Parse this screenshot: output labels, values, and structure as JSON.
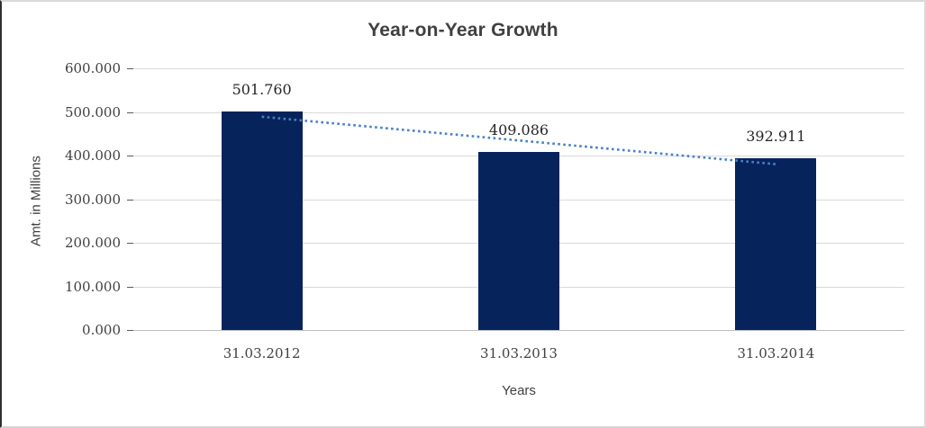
{
  "chart_data": {
    "type": "bar",
    "title": "Year-on-Year Growth",
    "xlabel": "Years",
    "ylabel": "Amt. in Millions",
    "categories": [
      "31.03.2012",
      "31.03.2013",
      "31.03.2014"
    ],
    "values": [
      501.76,
      409.086,
      392.911
    ],
    "data_labels": [
      "501.760",
      "409.086",
      "392.911"
    ],
    "ylim": [
      0,
      600
    ],
    "yticks": [
      0,
      100,
      200,
      300,
      400,
      500,
      600
    ],
    "ytick_labels": [
      "0.000",
      "100.000",
      "200.000",
      "300.000",
      "400.000",
      "500.000",
      "600.000"
    ],
    "grid": "horizontal-only",
    "legend": "none",
    "trendline": {
      "style": "dotted",
      "spans": "first-bar-center-to-last-bar-center",
      "start_value": 489.0,
      "end_value": 380.2
    },
    "colors": {
      "bar": "#07235c",
      "trendline": "#4a80c4",
      "gridline": "#d9d9d9",
      "axis_line": "#bdbdbd",
      "title_text": "#404040"
    }
  }
}
